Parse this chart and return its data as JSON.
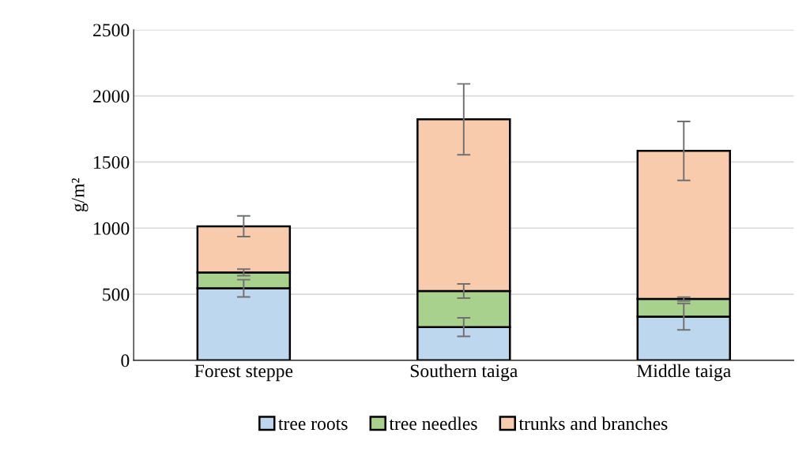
{
  "chart_data": {
    "type": "bar",
    "stacked": true,
    "ylabel": "g/m²",
    "categories": [
      "Forest steppe",
      "Southern taiga",
      "Middle taiga"
    ],
    "series": [
      {
        "name": "tree roots",
        "color": "#bdd7ee",
        "values": [
          545,
          251,
          330
        ],
        "errors": [
          65,
          70,
          100
        ]
      },
      {
        "name": "tree needles",
        "color": "#a9d18e",
        "values": [
          120,
          273,
          134
        ],
        "errors": [
          25,
          54,
          14
        ]
      },
      {
        "name": "trunks and branches",
        "color": "#f8cbad",
        "values": [
          349,
          1299,
          1120
        ],
        "errors": [
          78,
          268,
          223
        ]
      }
    ],
    "ylim": [
      0,
      2500
    ],
    "yticks": [
      0,
      500,
      1000,
      1500,
      2000,
      2500
    ],
    "grid": "y",
    "legend": "bottom"
  }
}
